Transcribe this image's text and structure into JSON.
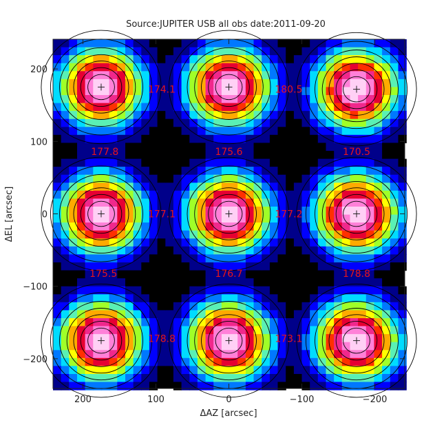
{
  "chart_data": {
    "type": "heatmap",
    "title": "Source:JUPITER USB all obs date:2011-09-20",
    "xlabel": "ΔAZ [arcsec]",
    "ylabel": "ΔEL [arcsec]",
    "xlim": [
      241,
      -241
    ],
    "ylim": [
      -241,
      241
    ],
    "x_ticks": [
      200,
      100,
      0,
      -100,
      -200
    ],
    "y_ticks": [
      200,
      100,
      0,
      -100,
      -200
    ],
    "grid": false,
    "beam_maps": [
      {
        "az": 175,
        "el": 175
      },
      {
        "az": 0,
        "el": 175
      },
      {
        "az": -175,
        "el": 172
      },
      {
        "az": 175,
        "el": 0
      },
      {
        "az": 0,
        "el": 0
      },
      {
        "az": -175,
        "el": 0
      },
      {
        "az": 175,
        "el": -175
      },
      {
        "az": 0,
        "el": -175
      },
      {
        "az": -175,
        "el": -175
      }
    ],
    "annotations": [
      {
        "text": "174.1",
        "az": 92,
        "el": 172
      },
      {
        "text": "180.5",
        "az": -82,
        "el": 172
      },
      {
        "text": "177.8",
        "az": 170,
        "el": 86
      },
      {
        "text": "175.6",
        "az": 0,
        "el": 86
      },
      {
        "text": "170.5",
        "az": -175,
        "el": 86
      },
      {
        "text": "177.1",
        "az": 92,
        "el": 0
      },
      {
        "text": "177.2",
        "az": -82,
        "el": 0
      },
      {
        "text": "175.5",
        "az": 172,
        "el": -82
      },
      {
        "text": "176.7",
        "az": 0,
        "el": -82
      },
      {
        "text": "178.8",
        "az": -175,
        "el": -82
      },
      {
        "text": "178.8",
        "az": 92,
        "el": -172
      },
      {
        "text": "173.1",
        "az": -82,
        "el": -172
      }
    ],
    "colors": {
      "background": "#000000",
      "annotation": "#e8141c",
      "contour": "#000000",
      "colormap": [
        "#000000",
        "#00008a",
        "#0000ff",
        "#0078ff",
        "#00dcff",
        "#5af0b4",
        "#a0ff28",
        "#ffff00",
        "#ffaa00",
        "#ff3000",
        "#e60032",
        "#f0288c",
        "#ff80d8",
        "#ffd0f5"
      ]
    }
  }
}
